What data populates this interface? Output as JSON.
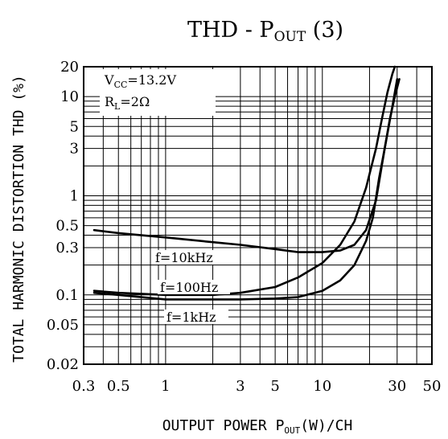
{
  "chart_data": {
    "type": "line",
    "title": {
      "main": "THD - P",
      "sub": "OUT",
      "suffix": " (3)"
    },
    "xlabel": {
      "main": "OUTPUT POWER P",
      "sub": "OUT",
      "suffix": "(W)/CH"
    },
    "ylabel": "TOTAL HARMONIC DISTORTION THD (%)",
    "x_scale": "log",
    "y_scale": "log",
    "xlim": [
      0.3,
      50
    ],
    "ylim": [
      0.02,
      20
    ],
    "x_ticks": [
      0.3,
      0.5,
      1,
      3,
      5,
      10,
      30,
      50
    ],
    "x_tick_labels": [
      "0.3",
      "0.5",
      "1",
      "3",
      "5",
      "10",
      "30",
      "50"
    ],
    "y_ticks": [
      0.02,
      0.05,
      0.1,
      0.3,
      0.5,
      1,
      3,
      5,
      10,
      20
    ],
    "y_tick_labels": [
      "0.02",
      "0.05",
      "0.1",
      "0.3",
      "0.5",
      "1",
      "3",
      "5",
      "10",
      "20"
    ],
    "grid": true,
    "conditions": [
      {
        "main": "V",
        "sub": "CC",
        "value": "=13.2V"
      },
      {
        "main": "R",
        "sub": "L",
        "value": "=2Ω"
      }
    ],
    "series": [
      {
        "name": "f=10kHz",
        "x": [
          0.35,
          0.5,
          1,
          2,
          3,
          5,
          7,
          10,
          13,
          16,
          19,
          22,
          25,
          28,
          30
        ],
        "y": [
          0.45,
          0.42,
          0.38,
          0.34,
          0.32,
          0.29,
          0.27,
          0.27,
          0.28,
          0.32,
          0.45,
          0.9,
          3,
          8,
          15
        ]
      },
      {
        "name": "f=100Hz",
        "x": [
          0.35,
          0.5,
          1,
          2,
          3,
          5,
          7,
          10,
          13,
          16,
          19,
          22,
          24,
          26,
          28,
          29
        ],
        "y": [
          0.11,
          0.105,
          0.1,
          0.1,
          0.105,
          0.12,
          0.15,
          0.21,
          0.32,
          0.55,
          1.2,
          3,
          6,
          11,
          17,
          20
        ]
      },
      {
        "name": "f=1kHz",
        "x": [
          0.35,
          0.5,
          1,
          2,
          3,
          5,
          7,
          10,
          13,
          16,
          19,
          21,
          23,
          25,
          27,
          29,
          31
        ],
        "y": [
          0.105,
          0.1,
          0.09,
          0.09,
          0.09,
          0.092,
          0.095,
          0.11,
          0.14,
          0.2,
          0.35,
          0.6,
          1.5,
          3,
          6,
          10,
          15
        ]
      }
    ]
  }
}
